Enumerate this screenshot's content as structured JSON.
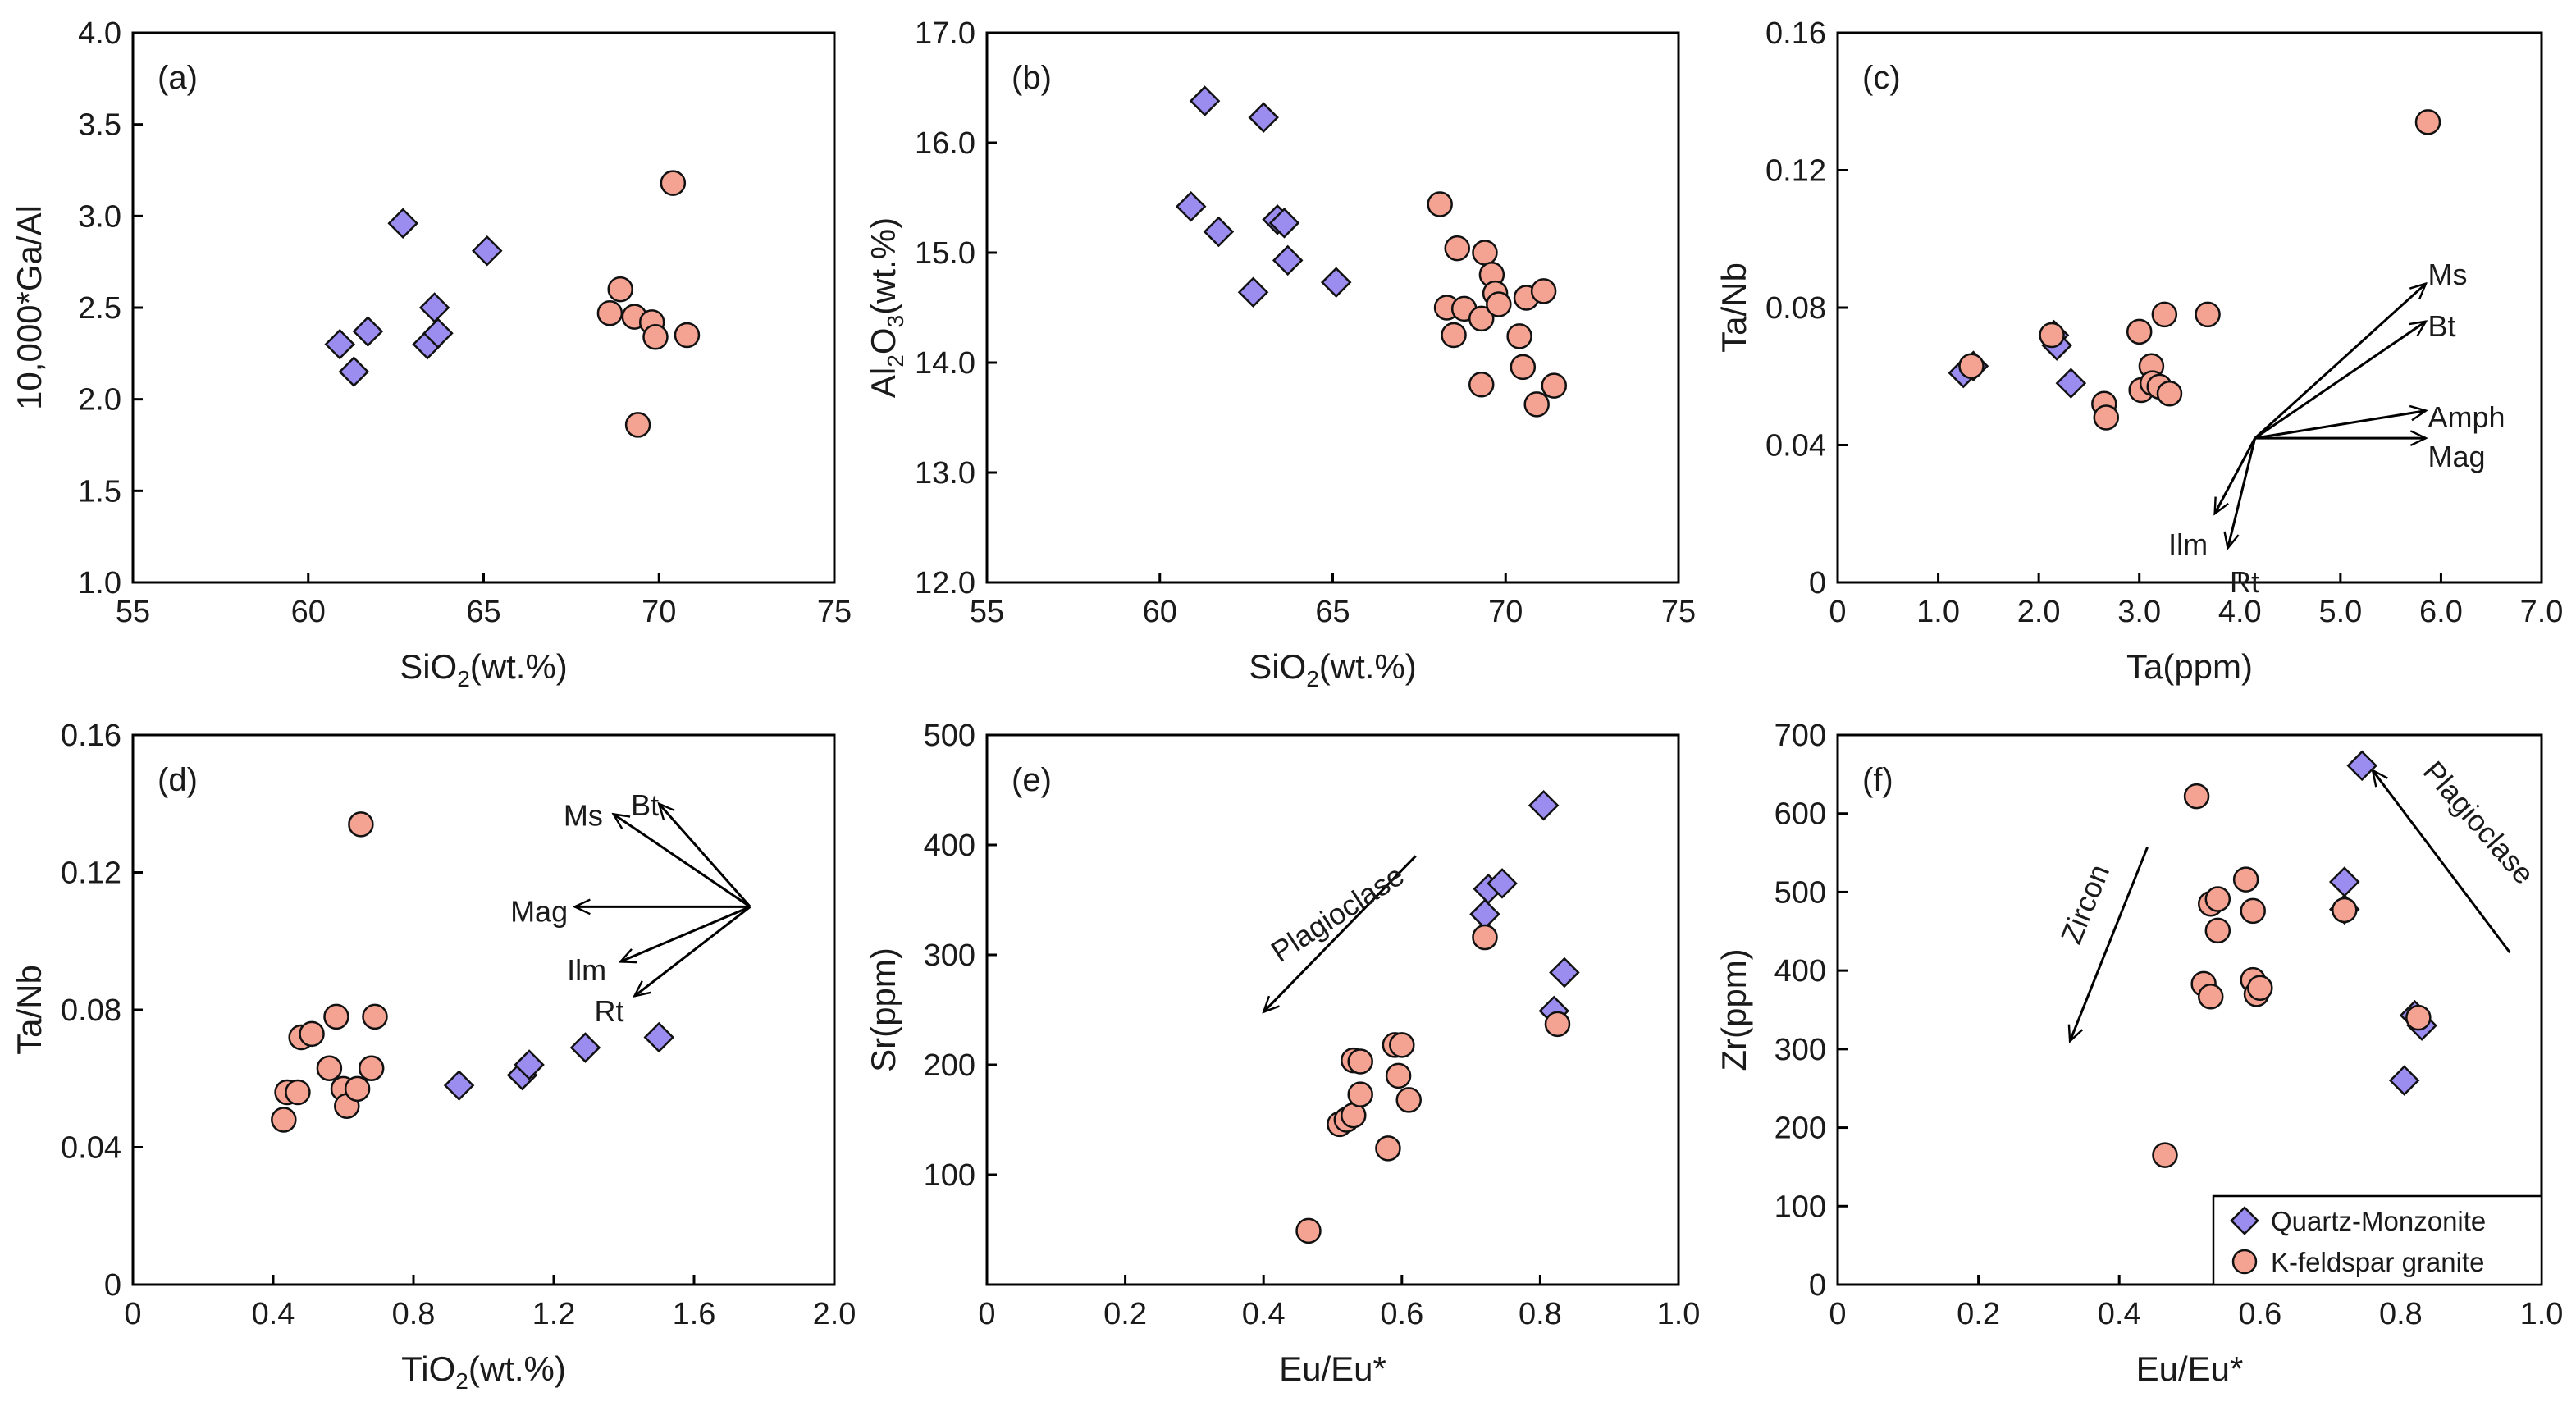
{
  "colors": {
    "quartz": "#9b8cf0",
    "kfeld": "#f4a292",
    "stroke": "#111111"
  },
  "legend": {
    "placement": "bottom-right",
    "entries": [
      {
        "series": "quartz",
        "marker": "diamond",
        "label": "Quartz-Monzonite"
      },
      {
        "series": "kfeld",
        "marker": "circle",
        "label": "K-feldspar granite"
      }
    ]
  },
  "chart_data": [
    {
      "panel": "(a)",
      "type": "scatter",
      "xlabel": [
        "SiO",
        "2",
        "(wt.%)"
      ],
      "ylabel": [
        "10,000*Ga/Al"
      ],
      "xlim": [
        55,
        75
      ],
      "ylim": [
        1.0,
        4.0
      ],
      "xticks": [
        "55",
        "60",
        "65",
        "70",
        "75"
      ],
      "yticks": [
        "1.0",
        "1.5",
        "2.0",
        "2.5",
        "3.0",
        "3.5",
        "4.0"
      ],
      "series": [
        {
          "key": "quartz",
          "points": [
            [
              60.9,
              2.3
            ],
            [
              61.3,
              2.15
            ],
            [
              61.7,
              2.37
            ],
            [
              62.7,
              2.96
            ],
            [
              63.4,
              2.3
            ],
            [
              63.6,
              2.5
            ],
            [
              63.7,
              2.36
            ],
            [
              65.1,
              2.81
            ]
          ]
        },
        {
          "key": "kfeld",
          "points": [
            [
              68.6,
              2.47
            ],
            [
              68.9,
              2.6
            ],
            [
              69.3,
              2.45
            ],
            [
              69.4,
              1.86
            ],
            [
              69.8,
              2.42
            ],
            [
              69.9,
              2.34
            ],
            [
              70.4,
              3.18
            ],
            [
              70.8,
              2.35
            ]
          ]
        }
      ],
      "arrows": []
    },
    {
      "panel": "(b)",
      "type": "scatter",
      "xlabel": [
        "SiO",
        "2",
        "(wt.%)"
      ],
      "ylabel": [
        "Al",
        "2",
        "O",
        "3",
        "(wt.%)"
      ],
      "xlim": [
        55,
        75
      ],
      "ylim": [
        12.0,
        17.0
      ],
      "xticks": [
        "55",
        "60",
        "65",
        "70",
        "75"
      ],
      "yticks": [
        "12.0",
        "13.0",
        "14.0",
        "15.0",
        "16.0",
        "17.0"
      ],
      "series": [
        {
          "key": "quartz",
          "points": [
            [
              60.9,
              15.42
            ],
            [
              61.3,
              16.38
            ],
            [
              61.7,
              15.19
            ],
            [
              62.7,
              14.64
            ],
            [
              63.0,
              16.23
            ],
            [
              63.4,
              15.3
            ],
            [
              63.6,
              15.27
            ],
            [
              63.7,
              14.93
            ],
            [
              65.1,
              14.73
            ]
          ]
        },
        {
          "key": "kfeld",
          "points": [
            [
              68.1,
              15.44
            ],
            [
              68.3,
              14.5
            ],
            [
              68.5,
              14.25
            ],
            [
              68.6,
              15.04
            ],
            [
              68.8,
              14.49
            ],
            [
              69.3,
              14.4
            ],
            [
              69.3,
              13.8
            ],
            [
              69.4,
              15.0
            ],
            [
              69.6,
              14.8
            ],
            [
              69.7,
              14.63
            ],
            [
              69.8,
              14.53
            ],
            [
              70.4,
              14.24
            ],
            [
              70.5,
              13.96
            ],
            [
              70.6,
              14.59
            ],
            [
              70.9,
              13.62
            ],
            [
              71.1,
              14.65
            ],
            [
              71.4,
              13.79
            ]
          ]
        }
      ],
      "arrows": []
    },
    {
      "panel": "(c)",
      "type": "scatter",
      "xlabel": [
        "Ta(ppm)"
      ],
      "ylabel": [
        "Ta/Nb"
      ],
      "xlim": [
        0,
        7.0
      ],
      "ylim": [
        0,
        0.16
      ],
      "xticks": [
        "0",
        "1.0",
        "2.0",
        "3.0",
        "4.0",
        "5.0",
        "6.0",
        "7.0"
      ],
      "yticks": [
        "0",
        "0.04",
        "0.08",
        "0.12",
        "0.16"
      ],
      "series": [
        {
          "key": "quartz",
          "points": [
            [
              1.25,
              0.061
            ],
            [
              1.35,
              0.063
            ],
            [
              2.15,
              0.072
            ],
            [
              2.18,
              0.069
            ],
            [
              2.32,
              0.058
            ]
          ]
        },
        {
          "key": "kfeld",
          "points": [
            [
              1.33,
              0.063
            ],
            [
              2.13,
              0.072
            ],
            [
              2.65,
              0.052
            ],
            [
              2.67,
              0.048
            ],
            [
              3.0,
              0.073
            ],
            [
              3.02,
              0.056
            ],
            [
              3.12,
              0.063
            ],
            [
              3.13,
              0.058
            ],
            [
              3.2,
              0.057
            ],
            [
              3.25,
              0.078
            ],
            [
              3.3,
              0.055
            ],
            [
              3.68,
              0.078
            ],
            [
              5.87,
              0.134
            ]
          ]
        }
      ],
      "arrows": [
        {
          "from": [
            4.15,
            0.042
          ],
          "to": [
            5.85,
            0.087
          ],
          "label": "Ms",
          "label_at": [
            5.87,
            0.0895
          ],
          "anchor": "start"
        },
        {
          "from": [
            4.15,
            0.042
          ],
          "to": [
            5.85,
            0.076
          ],
          "label": "Bt",
          "label_at": [
            5.87,
            0.0745
          ],
          "anchor": "start"
        },
        {
          "from": [
            4.15,
            0.042
          ],
          "to": [
            5.85,
            0.05
          ],
          "label": "Amph",
          "label_at": [
            5.87,
            0.048
          ],
          "anchor": "start"
        },
        {
          "from": [
            4.15,
            0.042
          ],
          "to": [
            5.85,
            0.042
          ],
          "label": "Mag",
          "label_at": [
            5.87,
            0.0365
          ],
          "anchor": "start"
        },
        {
          "from": [
            4.15,
            0.042
          ],
          "to": [
            3.75,
            0.02
          ],
          "label": "Ilm",
          "label_at": [
            3.68,
            0.011
          ],
          "anchor": "end"
        },
        {
          "from": [
            4.15,
            0.042
          ],
          "to": [
            3.88,
            0.01
          ],
          "label": "Rt",
          "label_at": [
            3.9,
            0.0
          ],
          "anchor": "start"
        }
      ]
    },
    {
      "panel": "(d)",
      "type": "scatter",
      "xlabel": [
        "TiO",
        "2",
        "(wt.%)"
      ],
      "ylabel": [
        "Ta/Nb"
      ],
      "xlim": [
        0,
        2.0
      ],
      "ylim": [
        0,
        0.16
      ],
      "xticks": [
        "0",
        "0.4",
        "0.8",
        "1.2",
        "1.6",
        "2.0"
      ],
      "yticks": [
        "0",
        "0.04",
        "0.08",
        "0.12",
        "0.16"
      ],
      "series": [
        {
          "key": "quartz",
          "points": [
            [
              0.93,
              0.058
            ],
            [
              1.11,
              0.061
            ],
            [
              1.13,
              0.064
            ],
            [
              1.29,
              0.069
            ],
            [
              1.5,
              0.072
            ]
          ]
        },
        {
          "key": "kfeld",
          "points": [
            [
              0.43,
              0.048
            ],
            [
              0.44,
              0.056
            ],
            [
              0.47,
              0.056
            ],
            [
              0.48,
              0.072
            ],
            [
              0.51,
              0.073
            ],
            [
              0.56,
              0.063
            ],
            [
              0.58,
              0.078
            ],
            [
              0.6,
              0.057
            ],
            [
              0.61,
              0.052
            ],
            [
              0.64,
              0.057
            ],
            [
              0.65,
              0.134
            ],
            [
              0.68,
              0.063
            ],
            [
              0.69,
              0.078
            ]
          ]
        }
      ],
      "arrows": [
        {
          "from": [
            1.76,
            0.11
          ],
          "to": [
            1.37,
            0.137
          ],
          "label": "Ms",
          "label_at": [
            1.34,
            0.1365
          ],
          "anchor": "end"
        },
        {
          "from": [
            1.76,
            0.11
          ],
          "to": [
            1.5,
            0.14
          ],
          "label": "Bt",
          "label_at": [
            1.46,
            0.1395
          ],
          "anchor": "middle"
        },
        {
          "from": [
            1.76,
            0.11
          ],
          "to": [
            1.26,
            0.11
          ],
          "label": "Mag",
          "label_at": [
            1.24,
            0.1085
          ],
          "anchor": "end"
        },
        {
          "from": [
            1.76,
            0.11
          ],
          "to": [
            1.39,
            0.094
          ],
          "label": "Ilm",
          "label_at": [
            1.35,
            0.0915
          ],
          "anchor": "end"
        },
        {
          "from": [
            1.76,
            0.11
          ],
          "to": [
            1.43,
            0.084
          ],
          "label": "Rt",
          "label_at": [
            1.4,
            0.0795
          ],
          "anchor": "end"
        }
      ]
    },
    {
      "panel": "(e)",
      "type": "scatter",
      "xlabel": [
        "Eu/Eu*"
      ],
      "ylabel": [
        "Sr(ppm)"
      ],
      "xlim": [
        0,
        1.0
      ],
      "ylim": [
        0,
        500
      ],
      "xticks": [
        "0",
        "0.2",
        "0.4",
        "0.6",
        "0.8",
        "1.0"
      ],
      "yticks": [
        "100",
        "200",
        "300",
        "400",
        "500"
      ],
      "series": [
        {
          "key": "quartz",
          "points": [
            [
              0.72,
              337
            ],
            [
              0.725,
              360
            ],
            [
              0.745,
              365
            ],
            [
              0.805,
              436
            ],
            [
              0.82,
              249
            ],
            [
              0.835,
              284
            ]
          ]
        },
        {
          "key": "kfeld",
          "points": [
            [
              0.465,
              49
            ],
            [
              0.51,
              146
            ],
            [
              0.52,
              150
            ],
            [
              0.53,
              154
            ],
            [
              0.53,
              204
            ],
            [
              0.54,
              173
            ],
            [
              0.54,
              203
            ],
            [
              0.58,
              124
            ],
            [
              0.59,
              218
            ],
            [
              0.595,
              190
            ],
            [
              0.6,
              218
            ],
            [
              0.61,
              168
            ],
            [
              0.72,
              316
            ],
            [
              0.825,
              237
            ]
          ]
        }
      ],
      "arrows": [
        {
          "from": [
            0.62,
            390
          ],
          "to": [
            0.4,
            248
          ],
          "label": "Plagioclase",
          "label_pos": [
            0.515,
            330
          ],
          "rotate": -33
        }
      ]
    },
    {
      "panel": "(f)",
      "type": "scatter",
      "xlabel": [
        "Eu/Eu*"
      ],
      "ylabel": [
        "Zr(ppm)"
      ],
      "xlim": [
        0,
        1.0
      ],
      "ylim": [
        0,
        700
      ],
      "xticks": [
        "0",
        "0.2",
        "0.4",
        "0.6",
        "0.8",
        "1.0"
      ],
      "yticks": [
        "0",
        "100",
        "200",
        "300",
        "400",
        "500",
        "600",
        "700"
      ],
      "series": [
        {
          "key": "quartz",
          "points": [
            [
              0.72,
              478
            ],
            [
              0.72,
              513
            ],
            [
              0.745,
              661
            ],
            [
              0.805,
              260
            ],
            [
              0.82,
              343
            ],
            [
              0.83,
              330
            ]
          ]
        },
        {
          "key": "kfeld",
          "points": [
            [
              0.465,
              165
            ],
            [
              0.51,
              622
            ],
            [
              0.52,
              383
            ],
            [
              0.53,
              367
            ],
            [
              0.53,
              485
            ],
            [
              0.54,
              491
            ],
            [
              0.54,
              451
            ],
            [
              0.58,
              516
            ],
            [
              0.59,
              388
            ],
            [
              0.59,
              476
            ],
            [
              0.595,
              370
            ],
            [
              0.6,
              378
            ],
            [
              0.72,
              477
            ],
            [
              0.825,
              340
            ]
          ]
        }
      ],
      "arrows": [
        {
          "from": [
            0.44,
            557
          ],
          "to": [
            0.33,
            310
          ],
          "label": "Zircon",
          "label_pos": [
            0.365,
            480
          ],
          "rotate": -68
        },
        {
          "from": [
            0.955,
            423
          ],
          "to": [
            0.76,
            655
          ],
          "label": "Plagioclase",
          "label_pos": [
            0.9,
            580
          ],
          "rotate": 49
        }
      ]
    }
  ]
}
